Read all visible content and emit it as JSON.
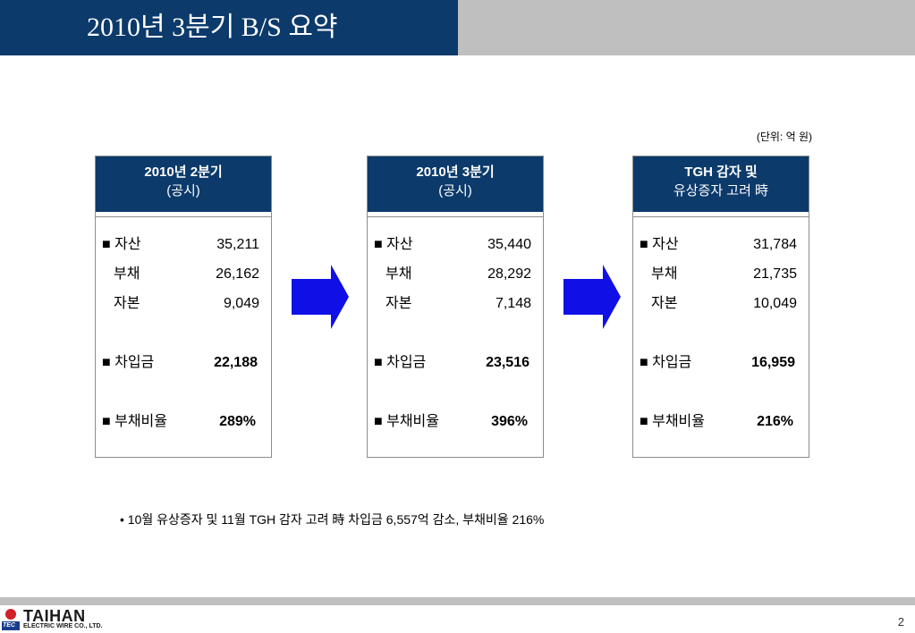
{
  "title": "2010년 3분기 B/S 요약",
  "unit_note": "(단위: 억 원)",
  "columns": [
    {
      "head_line1": "2010년 2분기",
      "head_line2": "(공시)",
      "rows": [
        {
          "label": "■ 자산",
          "value": "35,211"
        },
        {
          "label": "  부채",
          "value": "26,162"
        },
        {
          "label": "  자본",
          "value": "9,049"
        },
        {
          "label": "■ 차입금",
          "value": "22,188"
        },
        {
          "label": "■ 부채비율",
          "value": "289%"
        }
      ]
    },
    {
      "head_line1": "2010년 3분기",
      "head_line2": "(공시)",
      "rows": [
        {
          "label": "■ 자산",
          "value": "35,440"
        },
        {
          "label": "  부채",
          "value": "28,292"
        },
        {
          "label": "  자본",
          "value": "7,148"
        },
        {
          "label": "■ 차입금",
          "value": "23,516"
        },
        {
          "label": "■ 부채비율",
          "value": "396%"
        }
      ]
    },
    {
      "head_line1": "TGH 감자 및",
      "head_line2": "유상증자 고려 時",
      "rows": [
        {
          "label": "■ 자산",
          "value": "31,784"
        },
        {
          "label": "  부채",
          "value": "21,735"
        },
        {
          "label": "  자본",
          "value": "10,049"
        },
        {
          "label": "■ 차입금",
          "value": "16,959"
        },
        {
          "label": "■ 부채비율",
          "value": "216%"
        }
      ]
    }
  ],
  "note": "• 10월 유상증자 및 11월 TGH 감자 고려 時 차입금 6,557억 감소, 부채비율 216%",
  "footer": {
    "logo_text": "TAIHAN",
    "logo_sub": "ELECTRIC WIRE CO., LTD.",
    "logo_mark": "TEC",
    "page_number": "2"
  },
  "colors": {
    "header_blue": "#0c3a6b",
    "arrow_blue": "#1010e6",
    "gray": "#bfbfbf"
  }
}
